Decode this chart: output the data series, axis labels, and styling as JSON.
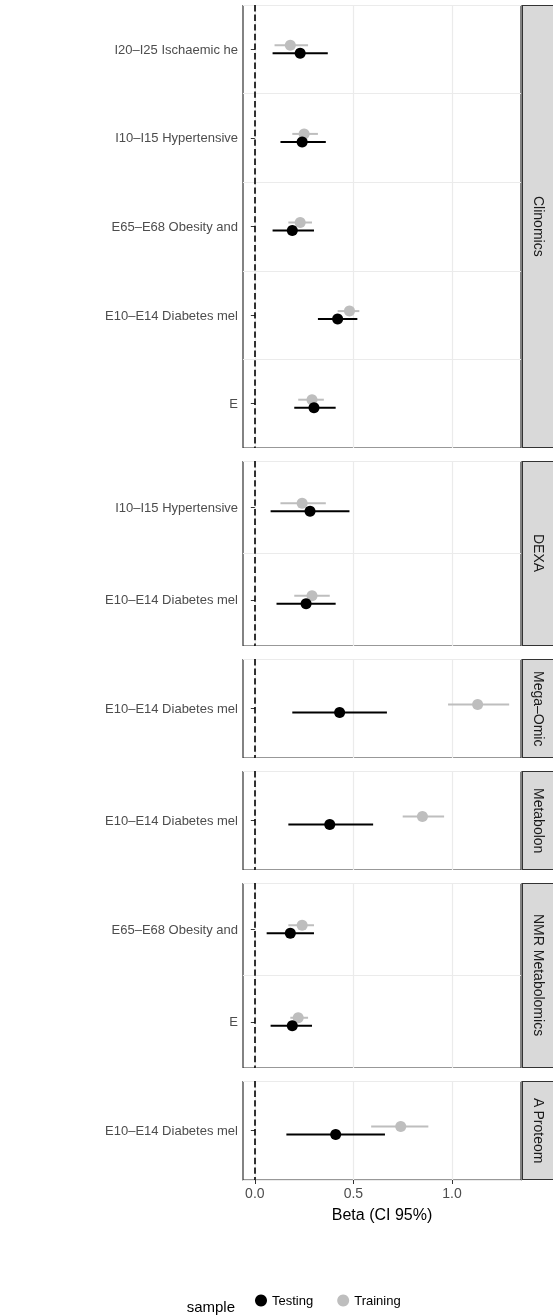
{
  "chart_data": [
    {
      "type": "scatter",
      "annotations": [
        "Clinomics"
      ],
      "orientation": "horizontal",
      "categories": [
        "I20–I25 Ischaemic he",
        "I10–I15 Hypertensive",
        "E65–E68 Obesity and",
        "E10–E14 Diabetes mel",
        "E"
      ],
      "series": [
        {
          "color": "#000000",
          "values": [
            0.23,
            0.24,
            0.19,
            0.42,
            0.3
          ],
          "errors": [
            [
              0.09,
              0.37
            ],
            [
              0.13,
              0.36
            ],
            [
              0.09,
              0.3
            ],
            [
              0.32,
              0.52
            ],
            [
              0.2,
              0.41
            ]
          ]
        },
        {
          "color": "#bebebe",
          "values": [
            0.18,
            0.25,
            0.23,
            0.48,
            0.29
          ],
          "errors": [
            [
              0.1,
              0.27
            ],
            [
              0.19,
              0.32
            ],
            [
              0.17,
              0.29
            ],
            [
              0.42,
              0.53
            ],
            [
              0.22,
              0.35
            ]
          ]
        }
      ],
      "xlim": [
        -0.06,
        1.35
      ],
      "xticks": [
        0,
        0.5,
        1
      ],
      "tick_labels": "y",
      "grid": true,
      "marker": "circle",
      "ref_lines": [
        {
          "axis": "x",
          "value": 0,
          "color": "#000000",
          "line_style": "dashed"
        }
      ]
    },
    {
      "type": "scatter",
      "annotations": [
        "DEXA"
      ],
      "orientation": "horizontal",
      "categories": [
        "I10–I15 Hypertensive",
        "E10–E14 Diabetes mel"
      ],
      "series": [
        {
          "color": "#000000",
          "values": [
            0.28,
            0.26
          ],
          "errors": [
            [
              0.08,
              0.48
            ],
            [
              0.11,
              0.41
            ]
          ]
        },
        {
          "color": "#bebebe",
          "values": [
            0.24,
            0.29
          ],
          "errors": [
            [
              0.13,
              0.36
            ],
            [
              0.2,
              0.38
            ]
          ]
        }
      ],
      "xlim": [
        -0.06,
        1.35
      ],
      "xticks": [
        0,
        0.5,
        1
      ],
      "tick_labels": "y",
      "grid": true,
      "marker": "circle",
      "ref_lines": [
        {
          "axis": "x",
          "value": 0,
          "color": "#000000",
          "line_style": "dashed"
        }
      ]
    },
    {
      "type": "scatter",
      "annotations": [
        "Mega–Omic"
      ],
      "orientation": "horizontal",
      "categories": [
        "E10–E14 Diabetes mel"
      ],
      "series": [
        {
          "color": "#000000",
          "values": [
            0.43
          ],
          "errors": [
            [
              0.19,
              0.67
            ]
          ]
        },
        {
          "color": "#bebebe",
          "values": [
            1.13
          ],
          "errors": [
            [
              0.98,
              1.29
            ]
          ]
        }
      ],
      "xlim": [
        -0.06,
        1.35
      ],
      "xticks": [
        0,
        0.5,
        1
      ],
      "tick_labels": "y",
      "grid": true,
      "marker": "circle",
      "ref_lines": [
        {
          "axis": "x",
          "value": 0,
          "color": "#000000",
          "line_style": "dashed"
        }
      ]
    },
    {
      "type": "scatter",
      "annotations": [
        "Metabolon"
      ],
      "orientation": "horizontal",
      "categories": [
        "E10–E14 Diabetes mel"
      ],
      "series": [
        {
          "color": "#000000",
          "values": [
            0.38
          ],
          "errors": [
            [
              0.17,
              0.6
            ]
          ]
        },
        {
          "color": "#bebebe",
          "values": [
            0.85
          ],
          "errors": [
            [
              0.75,
              0.96
            ]
          ]
        }
      ],
      "xlim": [
        -0.06,
        1.35
      ],
      "xticks": [
        0,
        0.5,
        1
      ],
      "tick_labels": "y",
      "grid": true,
      "marker": "circle",
      "ref_lines": [
        {
          "axis": "x",
          "value": 0,
          "color": "#000000",
          "line_style": "dashed"
        }
      ]
    },
    {
      "type": "scatter",
      "annotations": [
        "NMR Metabolomics"
      ],
      "orientation": "horizontal",
      "categories": [
        "E65–E68 Obesity and",
        "E"
      ],
      "series": [
        {
          "color": "#000000",
          "values": [
            0.18,
            0.19
          ],
          "errors": [
            [
              0.06,
              0.3
            ],
            [
              0.08,
              0.29
            ]
          ]
        },
        {
          "color": "#bebebe",
          "values": [
            0.24,
            0.22
          ],
          "errors": [
            [
              0.17,
              0.3
            ],
            [
              0.18,
              0.27
            ]
          ]
        }
      ],
      "xlim": [
        -0.06,
        1.35
      ],
      "xticks": [
        0,
        0.5,
        1
      ],
      "tick_labels": "y",
      "grid": true,
      "marker": "circle",
      "ref_lines": [
        {
          "axis": "x",
          "value": 0,
          "color": "#000000",
          "line_style": "dashed"
        }
      ]
    },
    {
      "type": "scatter",
      "annotations": [
        "A Proteom"
      ],
      "orientation": "horizontal",
      "categories": [
        "E10–E14 Diabetes mel"
      ],
      "series": [
        {
          "name": "Testing",
          "color": "#000000",
          "values": [
            0.41
          ],
          "errors": [
            [
              0.16,
              0.66
            ]
          ]
        },
        {
          "name": "Training",
          "color": "#bebebe",
          "values": [
            0.74
          ],
          "errors": [
            [
              0.59,
              0.88
            ]
          ]
        }
      ],
      "xlim": [
        -0.06,
        1.35
      ],
      "xticks": [
        {
          "value": 0,
          "label": "0.0"
        },
        {
          "value": 0.5,
          "label": "0.5"
        },
        {
          "value": 1,
          "label": "1.0"
        }
      ],
      "xlabel": "Beta (CI 95%)",
      "grid": true,
      "marker": "circle",
      "legend": "bottom",
      "legend_title": "sample",
      "ref_lines": [
        {
          "axis": "x",
          "value": 0,
          "color": "#000000",
          "line_style": "dashed"
        }
      ]
    }
  ]
}
